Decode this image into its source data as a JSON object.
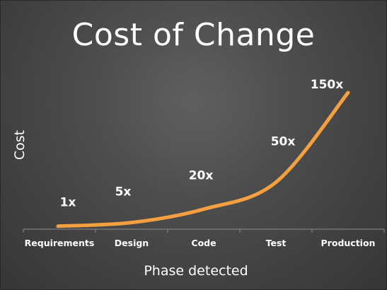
{
  "chart_data": {
    "type": "line",
    "title": "Cost of Change",
    "xlabel": "Phase detected",
    "ylabel": "Cost",
    "categories": [
      "Requirements",
      "Design",
      "Code",
      "Test",
      "Production"
    ],
    "values": [
      1,
      5,
      20,
      50,
      150
    ],
    "data_labels": [
      "1x",
      "5x",
      "20x",
      "50x",
      "150x"
    ],
    "grid": false,
    "line_color": "#f5a040"
  }
}
